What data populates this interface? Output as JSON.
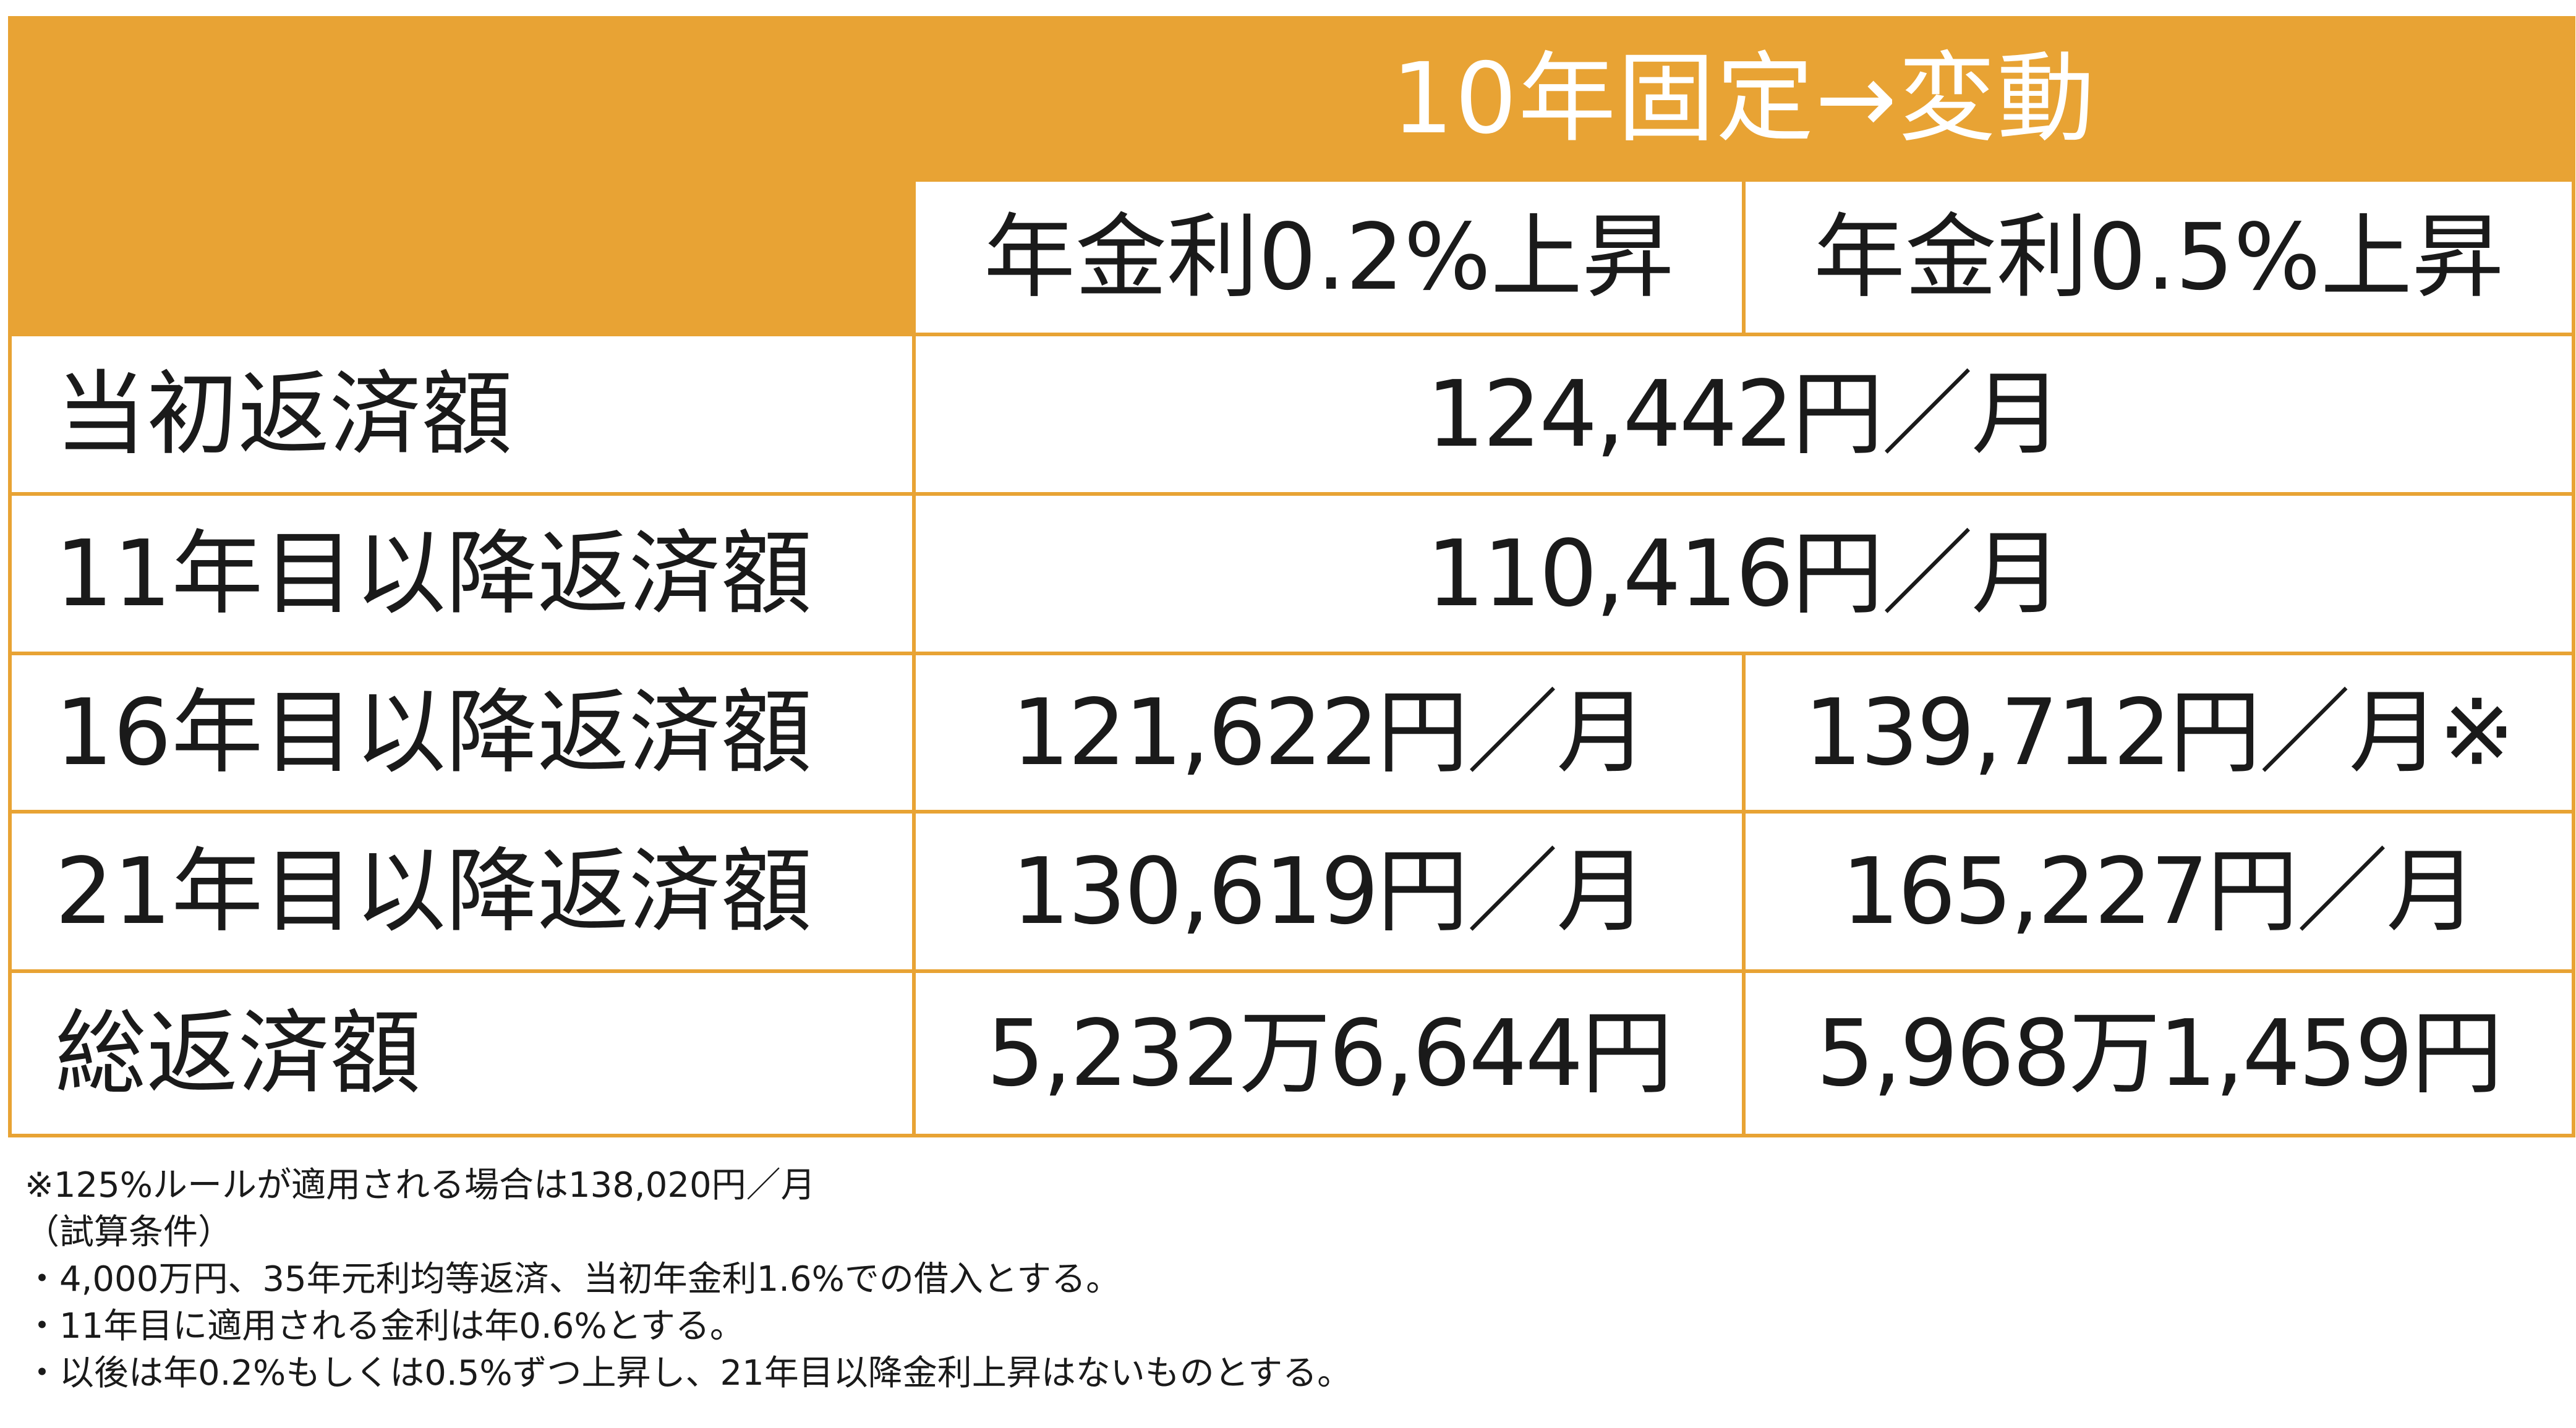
{
  "table": {
    "group_header": "10年固定→変動",
    "columns": [
      "年金利0.2%上昇",
      "年金利0.5%上昇"
    ],
    "rows": [
      {
        "label": "当初返済額",
        "merged": true,
        "value": "124,442円／月"
      },
      {
        "label": "11年目以降返済額",
        "merged": true,
        "value": "110,416円／月"
      },
      {
        "label": "16年目以降返済額",
        "merged": false,
        "values": [
          "121,622円／月",
          "139,712円／月※"
        ]
      },
      {
        "label": "21年目以降返済額",
        "merged": false,
        "values": [
          "130,619円／月",
          "165,227円／月"
        ]
      },
      {
        "label": "総返済額",
        "merged": false,
        "values": [
          "5,232万6,644円",
          "5,968万1,459円"
        ]
      }
    ]
  },
  "notes": [
    "※125%ルールが適用される場合は138,020円／月",
    "（試算条件）",
    "・4,000万円、35年元利均等返済、当初年金利1.6%での借入とする。",
    "・11年目に適用される金利は年0.6%とする。",
    "・以後は年0.2%もしくは0.5%ずつ上昇し、21年目以降金利上昇はないものとする。"
  ],
  "colors": {
    "accent": "#e8a334",
    "header_text": "#ffffff",
    "body_text": "#1a1a1a"
  }
}
